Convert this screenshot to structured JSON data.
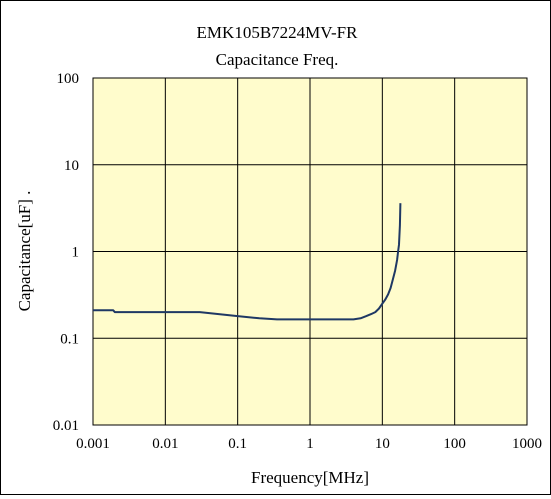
{
  "chart_data": {
    "type": "line",
    "title": "EMK105B7224MV-FR",
    "subtitle": "Capacitance Freq.",
    "xlabel": "Frequency[MHz]",
    "ylabel": "Capacitance[uF] .",
    "x_scale": "log",
    "y_scale": "log",
    "xlim": [
      0.001,
      1000
    ],
    "ylim": [
      0.01,
      100
    ],
    "x_ticks": [
      0.001,
      0.01,
      0.1,
      1,
      10,
      100,
      1000
    ],
    "x_tick_labels": [
      "0.001",
      "0.01",
      "0.1",
      "1",
      "10",
      "100",
      "1000"
    ],
    "y_ticks": [
      0.01,
      0.1,
      1,
      10,
      100
    ],
    "y_tick_labels": [
      "0.01",
      "0.1",
      "1",
      "10",
      "100"
    ],
    "grid": true,
    "colors": {
      "plot_background": "#fffccc",
      "line": "#1f3864",
      "grid": "#000000"
    },
    "series": [
      {
        "x": [
          0.001,
          0.0019,
          0.002,
          0.01,
          0.03,
          0.1,
          0.2,
          0.35,
          1,
          2,
          4,
          5,
          6,
          7,
          8,
          9,
          10,
          11,
          12,
          13,
          14,
          15,
          16,
          16.5,
          17,
          17.5,
          17.8
        ],
        "y": [
          0.21,
          0.21,
          0.2,
          0.2,
          0.2,
          0.18,
          0.17,
          0.165,
          0.165,
          0.165,
          0.165,
          0.17,
          0.18,
          0.19,
          0.2,
          0.22,
          0.25,
          0.28,
          0.32,
          0.38,
          0.48,
          0.6,
          0.8,
          1.0,
          1.2,
          2.0,
          3.6
        ]
      }
    ]
  }
}
